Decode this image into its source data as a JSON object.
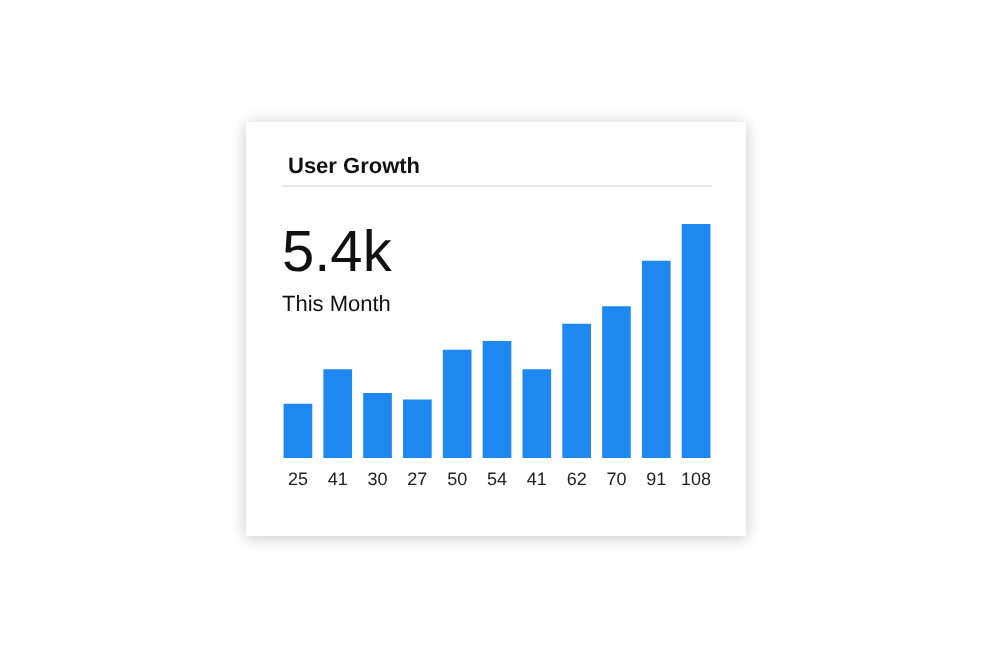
{
  "chart_data": {
    "type": "bar",
    "title": "User Growth",
    "annotations": [
      "5.4k",
      "This Month"
    ],
    "categories": [
      null,
      null,
      null,
      null,
      null,
      null,
      null,
      null,
      null,
      null,
      null
    ],
    "values": [
      25,
      41,
      30,
      27,
      50,
      54,
      41,
      62,
      70,
      91,
      108
    ],
    "color": "#1e88f0",
    "data_labels": true
  }
}
